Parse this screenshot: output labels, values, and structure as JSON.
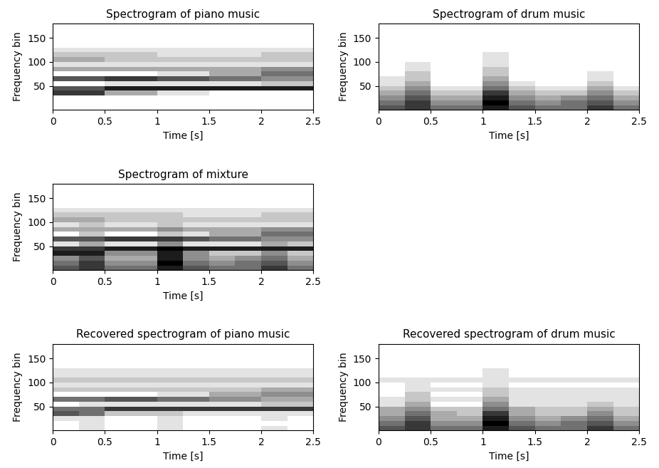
{
  "chart_data": [
    {
      "type": "heatmap",
      "title": "Spectrogram of piano music",
      "x_label": "Time [s]",
      "y_label": "Frequency bin",
      "xlim": [
        0,
        2.5
      ],
      "ylim": [
        0,
        180
      ],
      "xticks": [
        0,
        0.5,
        1,
        1.5,
        2,
        2.5
      ],
      "yticks": [
        50,
        100,
        150
      ],
      "x": [
        0,
        0.25,
        0.5,
        0.75,
        1,
        1.25,
        1.5,
        1.75,
        2,
        2.25,
        2.5
      ],
      "y": [
        0,
        10,
        20,
        30,
        40,
        50,
        60,
        70,
        80,
        90,
        100,
        110,
        120,
        130,
        140,
        150,
        160,
        170,
        180
      ],
      "clim": [
        0,
        9
      ],
      "cells": [
        [
          0,
          0,
          0,
          0,
          0,
          0,
          0,
          0,
          0,
          0
        ],
        [
          0,
          0,
          0,
          0,
          0,
          0,
          0,
          0,
          0,
          0
        ],
        [
          0,
          0,
          0,
          0,
          0,
          0,
          0,
          0,
          0,
          0
        ],
        [
          7,
          7,
          3,
          3,
          1,
          1,
          0,
          0,
          0,
          0
        ],
        [
          6,
          6,
          8,
          8,
          8,
          8,
          8,
          8,
          8,
          8
        ],
        [
          0,
          0,
          1,
          1,
          1,
          1,
          1,
          1,
          2,
          2
        ],
        [
          6,
          6,
          7,
          7,
          6,
          6,
          5,
          5,
          4,
          4
        ],
        [
          0,
          0,
          0,
          0,
          1,
          1,
          3,
          3,
          5,
          5
        ],
        [
          3,
          3,
          3,
          3,
          3,
          3,
          3,
          3,
          4,
          4
        ],
        [
          1,
          1,
          1,
          1,
          1,
          1,
          1,
          1,
          1,
          1
        ],
        [
          3,
          3,
          2,
          2,
          2,
          2,
          2,
          2,
          2,
          2
        ],
        [
          2,
          2,
          2,
          2,
          1,
          1,
          1,
          1,
          2,
          2
        ],
        [
          1,
          1,
          1,
          1,
          1,
          1,
          1,
          1,
          1,
          1
        ],
        [
          0,
          0,
          0,
          0,
          0,
          0,
          0,
          0,
          0,
          0
        ],
        [
          0,
          0,
          0,
          0,
          0,
          0,
          0,
          0,
          0,
          0
        ],
        [
          0,
          0,
          0,
          0,
          0,
          0,
          0,
          0,
          0,
          0
        ],
        [
          0,
          0,
          0,
          0,
          0,
          0,
          0,
          0,
          0,
          0
        ],
        [
          0,
          0,
          0,
          0,
          0,
          0,
          0,
          0,
          0,
          0
        ]
      ]
    },
    {
      "type": "heatmap",
      "title": "Spectrogram of drum music",
      "x_label": "Time [s]",
      "y_label": "Frequency bin",
      "xlim": [
        0,
        2.5
      ],
      "ylim": [
        0,
        180
      ],
      "xticks": [
        0,
        0.5,
        1,
        1.5,
        2,
        2.5
      ],
      "yticks": [
        50,
        100,
        150
      ],
      "x": [
        0,
        0.25,
        0.5,
        0.75,
        1,
        1.25,
        1.5,
        1.75,
        2,
        2.25,
        2.5
      ],
      "y": [
        0,
        10,
        20,
        30,
        40,
        50,
        60,
        70,
        80,
        90,
        100,
        110,
        120,
        130,
        140,
        150,
        160,
        170,
        180
      ],
      "clim": [
        0,
        9
      ],
      "cells": [
        [
          6,
          7,
          5,
          5,
          8,
          6,
          5,
          5,
          7,
          5
        ],
        [
          5,
          7,
          4,
          4,
          9,
          5,
          4,
          5,
          6,
          4
        ],
        [
          4,
          6,
          3,
          3,
          8,
          4,
          3,
          4,
          5,
          3
        ],
        [
          3,
          5,
          2,
          2,
          7,
          3,
          2,
          2,
          4,
          2
        ],
        [
          2,
          4,
          1,
          1,
          5,
          2,
          1,
          1,
          3,
          1
        ],
        [
          1,
          3,
          0,
          0,
          4,
          1,
          0,
          0,
          2,
          0
        ],
        [
          1,
          2,
          0,
          0,
          3,
          0,
          0,
          0,
          1,
          0
        ],
        [
          0,
          2,
          0,
          0,
          2,
          0,
          0,
          0,
          1,
          0
        ],
        [
          0,
          1,
          0,
          0,
          2,
          0,
          0,
          0,
          0,
          0
        ],
        [
          0,
          1,
          0,
          0,
          1,
          0,
          0,
          0,
          0,
          0
        ],
        [
          0,
          0,
          0,
          0,
          1,
          0,
          0,
          0,
          0,
          0
        ],
        [
          0,
          0,
          0,
          0,
          1,
          0,
          0,
          0,
          0,
          0
        ],
        [
          0,
          0,
          0,
          0,
          0,
          0,
          0,
          0,
          0,
          0
        ],
        [
          0,
          0,
          0,
          0,
          0,
          0,
          0,
          0,
          0,
          0
        ],
        [
          0,
          0,
          0,
          0,
          0,
          0,
          0,
          0,
          0,
          0
        ],
        [
          0,
          0,
          0,
          0,
          0,
          0,
          0,
          0,
          0,
          0
        ],
        [
          0,
          0,
          0,
          0,
          0,
          0,
          0,
          0,
          0,
          0
        ],
        [
          0,
          0,
          0,
          0,
          0,
          0,
          0,
          0,
          0,
          0
        ]
      ]
    },
    {
      "type": "heatmap",
      "title": "Spectrogram of mixture",
      "x_label": "Time [s]",
      "y_label": "Frequency bin",
      "xlim": [
        0,
        2.5
      ],
      "ylim": [
        0,
        180
      ],
      "xticks": [
        0,
        0.5,
        1,
        1.5,
        2,
        2.5
      ],
      "yticks": [
        50,
        100,
        150
      ],
      "x": [
        0,
        0.25,
        0.5,
        0.75,
        1,
        1.25,
        1.5,
        1.75,
        2,
        2.25,
        2.5
      ],
      "y": [
        0,
        10,
        20,
        30,
        40,
        50,
        60,
        70,
        80,
        90,
        100,
        110,
        120,
        130,
        140,
        150,
        160,
        170,
        180
      ],
      "clim": [
        0,
        9
      ],
      "cells": [
        [
          6,
          7,
          5,
          5,
          8,
          6,
          5,
          5,
          7,
          5
        ],
        [
          5,
          7,
          4,
          4,
          9,
          5,
          4,
          5,
          6,
          4
        ],
        [
          4,
          6,
          3,
          3,
          8,
          4,
          3,
          4,
          5,
          3
        ],
        [
          8,
          8,
          4,
          4,
          8,
          4,
          2,
          2,
          4,
          2
        ],
        [
          7,
          7,
          8,
          8,
          9,
          8,
          8,
          8,
          8,
          8
        ],
        [
          1,
          3,
          1,
          1,
          4,
          1,
          1,
          1,
          3,
          2
        ],
        [
          6,
          6,
          7,
          7,
          7,
          6,
          5,
          5,
          4,
          4
        ],
        [
          0,
          2,
          0,
          0,
          2,
          1,
          3,
          3,
          5,
          5
        ],
        [
          3,
          3,
          3,
          3,
          4,
          3,
          3,
          3,
          4,
          4
        ],
        [
          1,
          2,
          1,
          1,
          2,
          1,
          1,
          1,
          1,
          1
        ],
        [
          3,
          3,
          2,
          2,
          2,
          2,
          2,
          2,
          2,
          2
        ],
        [
          2,
          2,
          2,
          2,
          2,
          1,
          1,
          1,
          2,
          2
        ],
        [
          1,
          1,
          1,
          1,
          1,
          1,
          1,
          1,
          1,
          1
        ],
        [
          0,
          0,
          0,
          0,
          0,
          0,
          0,
          0,
          0,
          0
        ],
        [
          0,
          0,
          0,
          0,
          0,
          0,
          0,
          0,
          0,
          0
        ],
        [
          0,
          0,
          0,
          0,
          0,
          0,
          0,
          0,
          0,
          0
        ],
        [
          0,
          0,
          0,
          0,
          0,
          0,
          0,
          0,
          0,
          0
        ],
        [
          0,
          0,
          0,
          0,
          0,
          0,
          0,
          0,
          0,
          0
        ]
      ]
    },
    {
      "type": "heatmap",
      "title": "Recovered spectrogram of piano music",
      "x_label": "Time [s]",
      "y_label": "Frequency bin",
      "xlim": [
        0,
        2.5
      ],
      "ylim": [
        0,
        180
      ],
      "xticks": [
        0,
        0.5,
        1,
        1.5,
        2,
        2.5
      ],
      "yticks": [
        50,
        100,
        150
      ],
      "x": [
        0,
        0.25,
        0.5,
        0.75,
        1,
        1.25,
        1.5,
        1.75,
        2,
        2.25,
        2.5
      ],
      "y": [
        0,
        10,
        20,
        30,
        40,
        50,
        60,
        70,
        80,
        90,
        100,
        110,
        120,
        130,
        140,
        150,
        160,
        170,
        180
      ],
      "clim": [
        0,
        9
      ],
      "cells": [
        [
          0,
          1,
          0,
          0,
          1,
          0,
          0,
          0,
          1,
          0
        ],
        [
          0,
          1,
          0,
          0,
          1,
          0,
          0,
          0,
          0,
          0
        ],
        [
          1,
          1,
          0,
          0,
          1,
          0,
          0,
          0,
          1,
          0
        ],
        [
          6,
          5,
          2,
          2,
          2,
          1,
          1,
          1,
          1,
          1
        ],
        [
          5,
          5,
          7,
          7,
          7,
          7,
          7,
          7,
          7,
          7
        ],
        [
          0,
          1,
          1,
          1,
          1,
          1,
          1,
          1,
          2,
          2
        ],
        [
          5,
          5,
          6,
          6,
          5,
          5,
          4,
          4,
          3,
          3
        ],
        [
          0,
          0,
          0,
          0,
          1,
          1,
          3,
          3,
          4,
          4
        ],
        [
          2,
          2,
          2,
          2,
          2,
          2,
          2,
          2,
          3,
          3
        ],
        [
          1,
          1,
          1,
          1,
          1,
          1,
          1,
          1,
          1,
          1
        ],
        [
          2,
          2,
          2,
          2,
          2,
          2,
          2,
          2,
          2,
          2
        ],
        [
          1,
          1,
          1,
          1,
          1,
          1,
          1,
          1,
          1,
          1
        ],
        [
          1,
          1,
          1,
          1,
          1,
          1,
          1,
          1,
          1,
          1
        ],
        [
          0,
          0,
          0,
          0,
          0,
          0,
          0,
          0,
          0,
          0
        ],
        [
          0,
          0,
          0,
          0,
          0,
          0,
          0,
          0,
          0,
          0
        ],
        [
          0,
          0,
          0,
          0,
          0,
          0,
          0,
          0,
          0,
          0
        ],
        [
          0,
          0,
          0,
          0,
          0,
          0,
          0,
          0,
          0,
          0
        ],
        [
          0,
          0,
          0,
          0,
          0,
          0,
          0,
          0,
          0,
          0
        ]
      ]
    },
    {
      "type": "heatmap",
      "title": "Recovered spectrogram of drum music",
      "x_label": "Time [s]",
      "y_label": "Frequency bin",
      "xlim": [
        0,
        2.5
      ],
      "ylim": [
        0,
        180
      ],
      "xticks": [
        0,
        0.5,
        1,
        1.5,
        2,
        2.5
      ],
      "yticks": [
        50,
        100,
        150
      ],
      "x": [
        0,
        0.25,
        0.5,
        0.75,
        1,
        1.25,
        1.5,
        1.75,
        2,
        2.25,
        2.5
      ],
      "y": [
        0,
        10,
        20,
        30,
        40,
        50,
        60,
        70,
        80,
        90,
        100,
        110,
        120,
        130,
        140,
        150,
        160,
        170,
        180
      ],
      "clim": [
        0,
        9
      ],
      "cells": [
        [
          6,
          7,
          5,
          5,
          8,
          6,
          5,
          5,
          7,
          5
        ],
        [
          5,
          7,
          4,
          4,
          9,
          5,
          4,
          5,
          6,
          4
        ],
        [
          4,
          6,
          3,
          3,
          8,
          4,
          3,
          4,
          5,
          3
        ],
        [
          3,
          5,
          3,
          2,
          7,
          3,
          2,
          2,
          4,
          2
        ],
        [
          3,
          4,
          2,
          2,
          5,
          3,
          2,
          2,
          3,
          2
        ],
        [
          1,
          3,
          0,
          0,
          4,
          1,
          1,
          1,
          2,
          1
        ],
        [
          1,
          2,
          1,
          1,
          3,
          1,
          1,
          1,
          1,
          1
        ],
        [
          0,
          2,
          0,
          0,
          2,
          1,
          1,
          1,
          1,
          1
        ],
        [
          0,
          1,
          1,
          1,
          2,
          1,
          1,
          1,
          1,
          1
        ],
        [
          0,
          1,
          0,
          0,
          1,
          0,
          0,
          0,
          0,
          0
        ],
        [
          1,
          1,
          1,
          1,
          1,
          1,
          1,
          1,
          1,
          1
        ],
        [
          0,
          0,
          0,
          0,
          1,
          0,
          0,
          0,
          0,
          0
        ],
        [
          0,
          0,
          0,
          0,
          1,
          0,
          0,
          0,
          0,
          0
        ],
        [
          0,
          0,
          0,
          0,
          0,
          0,
          0,
          0,
          0,
          0
        ],
        [
          0,
          0,
          0,
          0,
          0,
          0,
          0,
          0,
          0,
          0
        ],
        [
          0,
          0,
          0,
          0,
          0,
          0,
          0,
          0,
          0,
          0
        ],
        [
          0,
          0,
          0,
          0,
          0,
          0,
          0,
          0,
          0,
          0
        ],
        [
          0,
          0,
          0,
          0,
          0,
          0,
          0,
          0,
          0,
          0
        ]
      ]
    }
  ]
}
